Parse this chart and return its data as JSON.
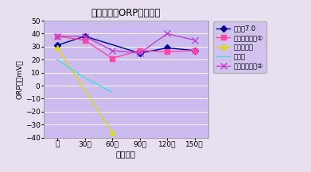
{
  "title": "水素摂取とORP値の変化",
  "xlabel": "経過時間",
  "ylabel": "ORP値（mV）",
  "xtick_labels": [
    "前",
    "30分",
    "60分",
    "90分",
    "120分",
    "150分"
  ],
  "ylim": [
    -40,
    50
  ],
  "yticks": [
    -40,
    -30,
    -20,
    -10,
    0,
    10,
    20,
    30,
    40,
    50
  ],
  "fig_bg_color": "#e8e0f0",
  "plot_bg_color": "#ccbbee",
  "series": [
    {
      "name": "水素水7.0",
      "color": "#000099",
      "marker": "D",
      "marker_size": 4,
      "x": [
        0,
        1,
        3,
        4,
        5
      ],
      "y": [
        31,
        38,
        25,
        29,
        27
      ]
    },
    {
      "name": "マリアージュ①",
      "color": "#ff44aa",
      "marker": "s",
      "marker_size": 5,
      "x": [
        0,
        1,
        2,
        3,
        4,
        5
      ],
      "y": [
        38,
        35,
        21,
        27,
        26,
        27
      ]
    },
    {
      "name": "スイソニア",
      "color": "#dddd00",
      "marker": "^",
      "marker_size": 5,
      "x": [
        0,
        2
      ],
      "y": [
        29,
        -36
      ]
    },
    {
      "name": "水素浴",
      "color": "#44dddd",
      "marker": "None",
      "marker_size": 4,
      "x": [
        0,
        1,
        2
      ],
      "y": [
        20,
        6,
        -5
      ]
    },
    {
      "name": "マリアージュ②",
      "color": "#bb44cc",
      "marker": "x",
      "marker_size": 6,
      "x": [
        0,
        1,
        2,
        3,
        4,
        5
      ],
      "y": [
        38,
        38,
        27,
        25,
        40,
        35
      ]
    }
  ]
}
